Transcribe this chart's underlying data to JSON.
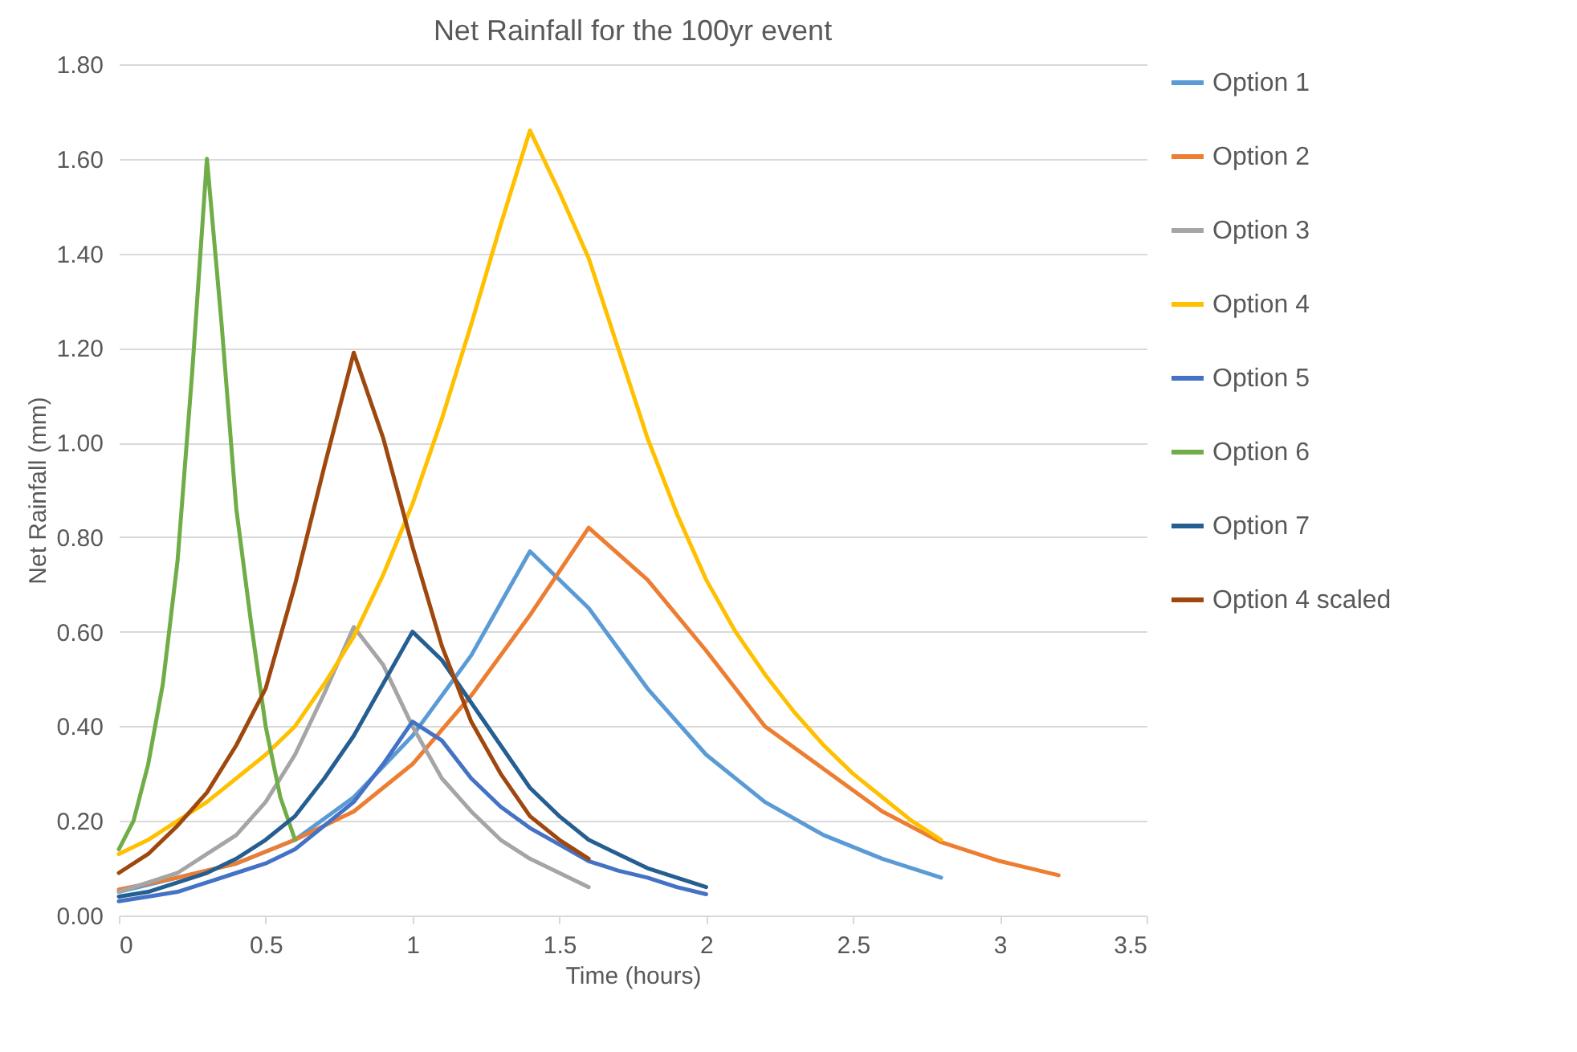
{
  "chart_data": {
    "type": "line",
    "title": "Net Rainfall for the 100yr event",
    "xlabel": "Time (hours)",
    "ylabel": "Net Rainfall (mm)",
    "xlim": [
      0,
      3.5
    ],
    "xticks": [
      0,
      0.5,
      1,
      1.5,
      2,
      2.5,
      3,
      3.5
    ],
    "ylim": [
      0,
      1.8
    ],
    "yticks": [
      {
        "value": 0,
        "label": "0.00"
      },
      {
        "value": 0.2,
        "label": "0.20"
      },
      {
        "value": 0.4,
        "label": "0.40"
      },
      {
        "value": 0.6,
        "label": "0.60"
      },
      {
        "value": 0.8,
        "label": "0.80"
      },
      {
        "value": 1,
        "label": "1.00"
      },
      {
        "value": 1.2,
        "label": "1.20"
      },
      {
        "value": 1.4,
        "label": "1.40"
      },
      {
        "value": 1.6,
        "label": "1.60"
      },
      {
        "value": 1.8,
        "label": "1.80"
      }
    ],
    "grid": "y",
    "legend": "right",
    "line_style": "solid",
    "series": [
      {
        "name": "Option 1",
        "color": "#5b9bd5",
        "x": [
          0,
          0.2,
          0.4,
          0.6,
          0.8,
          1.0,
          1.2,
          1.4,
          1.6,
          1.8,
          2.0,
          2.2,
          2.4,
          2.6,
          2.8
        ],
        "values": [
          0.05,
          0.08,
          0.11,
          0.16,
          0.25,
          0.38,
          0.55,
          0.77,
          0.65,
          0.48,
          0.34,
          0.24,
          0.17,
          0.12,
          0.08
        ]
      },
      {
        "name": "Option 2",
        "color": "#ed7d31",
        "x": [
          0,
          0.2,
          0.4,
          0.6,
          0.8,
          1.0,
          1.2,
          1.4,
          1.6,
          1.8,
          2.0,
          2.2,
          2.4,
          2.6,
          2.8,
          3.0,
          3.2
        ],
        "values": [
          0.055,
          0.08,
          0.11,
          0.16,
          0.22,
          0.32,
          0.465,
          0.635,
          0.82,
          0.71,
          0.56,
          0.4,
          0.31,
          0.22,
          0.155,
          0.115,
          0.085
        ]
      },
      {
        "name": "Option 3",
        "color": "#a5a5a5",
        "x": [
          0,
          0.1,
          0.2,
          0.3,
          0.4,
          0.5,
          0.6,
          0.7,
          0.8,
          0.9,
          1.0,
          1.1,
          1.2,
          1.3,
          1.4,
          1.5,
          1.6
        ],
        "values": [
          0.05,
          0.07,
          0.09,
          0.13,
          0.17,
          0.24,
          0.34,
          0.47,
          0.61,
          0.53,
          0.4,
          0.29,
          0.22,
          0.16,
          0.12,
          0.09,
          0.06
        ]
      },
      {
        "name": "Option 4",
        "color": "#ffc000",
        "x": [
          0,
          0.1,
          0.2,
          0.3,
          0.4,
          0.5,
          0.6,
          0.7,
          0.8,
          0.9,
          1.0,
          1.1,
          1.2,
          1.3,
          1.4,
          1.5,
          1.6,
          1.7,
          1.8,
          1.9,
          2.0,
          2.1,
          2.2,
          2.3,
          2.4,
          2.5,
          2.6,
          2.7,
          2.8
        ],
        "values": [
          0.13,
          0.16,
          0.2,
          0.24,
          0.29,
          0.34,
          0.4,
          0.49,
          0.59,
          0.72,
          0.87,
          1.05,
          1.25,
          1.46,
          1.66,
          1.53,
          1.39,
          1.2,
          1.01,
          0.85,
          0.71,
          0.6,
          0.51,
          0.43,
          0.36,
          0.3,
          0.25,
          0.2,
          0.16
        ]
      },
      {
        "name": "Option 5",
        "color": "#4472c4",
        "x": [
          0,
          0.1,
          0.2,
          0.3,
          0.4,
          0.5,
          0.6,
          0.7,
          0.8,
          0.9,
          1.0,
          1.1,
          1.2,
          1.3,
          1.4,
          1.5,
          1.6,
          1.7,
          1.8,
          1.9,
          2.0
        ],
        "values": [
          0.03,
          0.04,
          0.05,
          0.07,
          0.09,
          0.11,
          0.14,
          0.19,
          0.24,
          0.32,
          0.41,
          0.37,
          0.29,
          0.23,
          0.185,
          0.15,
          0.115,
          0.095,
          0.08,
          0.06,
          0.045
        ]
      },
      {
        "name": "Option 6",
        "color": "#70ad47",
        "x": [
          0,
          0.05,
          0.1,
          0.15,
          0.2,
          0.25,
          0.3,
          0.35,
          0.4,
          0.45,
          0.5,
          0.55,
          0.6
        ],
        "values": [
          0.14,
          0.2,
          0.32,
          0.49,
          0.75,
          1.15,
          1.6,
          1.25,
          0.86,
          0.62,
          0.4,
          0.25,
          0.16
        ]
      },
      {
        "name": "Option 7",
        "color": "#255e91",
        "x": [
          0,
          0.1,
          0.2,
          0.3,
          0.4,
          0.5,
          0.6,
          0.7,
          0.8,
          0.9,
          1.0,
          1.1,
          1.2,
          1.3,
          1.4,
          1.5,
          1.6,
          1.7,
          1.8,
          1.9,
          2.0
        ],
        "values": [
          0.04,
          0.05,
          0.07,
          0.09,
          0.12,
          0.16,
          0.21,
          0.29,
          0.38,
          0.49,
          0.6,
          0.54,
          0.45,
          0.36,
          0.27,
          0.21,
          0.16,
          0.13,
          0.1,
          0.08,
          0.06
        ]
      },
      {
        "name": "Option 4 scaled",
        "color": "#9e480e",
        "x": [
          0,
          0.1,
          0.2,
          0.3,
          0.4,
          0.5,
          0.6,
          0.7,
          0.8,
          0.9,
          1.0,
          1.1,
          1.2,
          1.3,
          1.4,
          1.5,
          1.6
        ],
        "values": [
          0.09,
          0.13,
          0.19,
          0.26,
          0.36,
          0.48,
          0.7,
          0.95,
          1.19,
          1.01,
          0.78,
          0.57,
          0.41,
          0.3,
          0.21,
          0.16,
          0.12
        ]
      }
    ]
  }
}
